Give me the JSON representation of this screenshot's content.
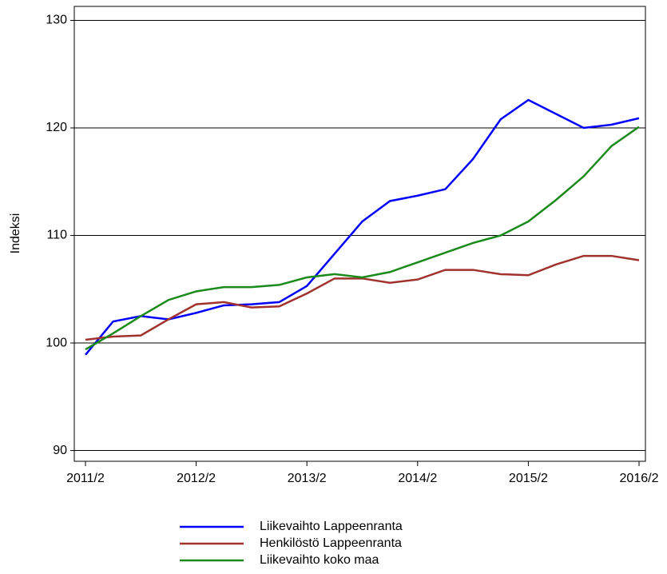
{
  "chart_data": {
    "type": "line",
    "y_label": "Indeksi",
    "categories": [
      "2011/2",
      null,
      null,
      null,
      "2012/2",
      null,
      null,
      null,
      "2013/2",
      null,
      null,
      null,
      "2014/2",
      null,
      null,
      null,
      "2015/2",
      null,
      null,
      null,
      "2016/2"
    ],
    "series": [
      {
        "name": "Liikevaihto Lappeenranta",
        "color": "#0000ff",
        "values": [
          98.9,
          102.0,
          102.5,
          102.2,
          102.8,
          103.5,
          103.6,
          103.8,
          105.3,
          108.3,
          111.3,
          113.2,
          113.7,
          114.3,
          117.1,
          120.8,
          122.6,
          121.3,
          120.0,
          120.3,
          120.9
        ]
      },
      {
        "name": "Henkilöstö Lappeenranta",
        "color": "#a0322d",
        "values": [
          100.3,
          100.6,
          100.7,
          102.2,
          103.6,
          103.8,
          103.3,
          103.4,
          104.6,
          106.0,
          106.0,
          105.6,
          105.9,
          106.8,
          106.8,
          106.4,
          106.3,
          107.3,
          108.1,
          108.1,
          107.7
        ]
      },
      {
        "name": "Liikevaihto koko maa",
        "color": "#1a8a1a",
        "values": [
          99.4,
          100.9,
          102.5,
          104.0,
          104.8,
          105.2,
          105.2,
          105.4,
          106.1,
          106.4,
          106.1,
          106.6,
          107.5,
          108.4,
          109.3,
          110.0,
          111.3,
          113.3,
          115.5,
          118.3,
          120.1
        ]
      }
    ],
    "ylim": [
      89,
      131.3
    ],
    "yticks": [
      90,
      100,
      110,
      120,
      130
    ],
    "grid": true
  }
}
